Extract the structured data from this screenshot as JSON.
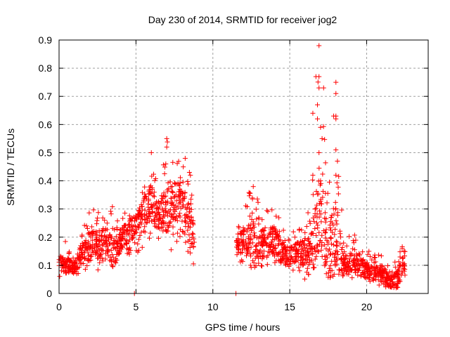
{
  "chart_data": {
    "type": "scatter",
    "title": "Day 230 of 2014, SRMTID for receiver jog2",
    "xlabel": "GPS time / hours",
    "ylabel": "SRMTID / TECUs",
    "xlim": [
      0,
      24
    ],
    "ylim": [
      0,
      0.9
    ],
    "xticks": [
      0,
      5,
      10,
      15,
      20
    ],
    "xtick_labels": [
      "0",
      "5",
      "10",
      "15",
      "20"
    ],
    "yticks": [
      0,
      0.1,
      0.2,
      0.3,
      0.4,
      0.5,
      0.6,
      0.7,
      0.8,
      0.9
    ],
    "ytick_labels": [
      "0",
      "0.1",
      "0.2",
      "0.3",
      "0.4",
      "0.5",
      "0.6",
      "0.7",
      "0.8",
      "0.9"
    ],
    "grid": true,
    "legend": "none",
    "marker": "plus",
    "color": "#ff0000",
    "series": [
      {
        "name": "SRMTID",
        "envelope_description": "Dense point cloud; sampled trend values per time bin (hour, typical value, min, max)",
        "trend": [
          [
            0.0,
            0.11,
            0.05,
            0.16
          ],
          [
            0.5,
            0.1,
            0.06,
            0.19
          ],
          [
            1.0,
            0.09,
            0.05,
            0.14
          ],
          [
            1.5,
            0.15,
            0.08,
            0.24
          ],
          [
            2.0,
            0.17,
            0.06,
            0.3
          ],
          [
            2.5,
            0.17,
            0.08,
            0.31
          ],
          [
            3.0,
            0.2,
            0.1,
            0.28
          ],
          [
            3.5,
            0.14,
            0.09,
            0.33
          ],
          [
            4.0,
            0.19,
            0.12,
            0.3
          ],
          [
            4.5,
            0.22,
            0.13,
            0.3
          ],
          [
            5.0,
            0.24,
            0.14,
            0.31
          ],
          [
            5.5,
            0.3,
            0.14,
            0.37
          ],
          [
            6.0,
            0.32,
            0.2,
            0.5
          ],
          [
            6.5,
            0.28,
            0.18,
            0.4
          ],
          [
            7.0,
            0.3,
            0.14,
            0.55
          ],
          [
            7.5,
            0.33,
            0.15,
            0.46
          ],
          [
            8.0,
            0.32,
            0.19,
            0.48
          ],
          [
            8.5,
            0.24,
            0.12,
            0.45
          ],
          [
            8.8,
            0.19,
            0.1,
            0.25
          ],
          [
            11.5,
            0.18,
            0.12,
            0.25
          ],
          [
            12.0,
            0.18,
            0.09,
            0.29
          ],
          [
            12.5,
            0.2,
            0.08,
            0.4
          ],
          [
            13.0,
            0.17,
            0.1,
            0.32
          ],
          [
            13.5,
            0.18,
            0.09,
            0.33
          ],
          [
            14.0,
            0.19,
            0.1,
            0.31
          ],
          [
            14.5,
            0.14,
            0.06,
            0.25
          ],
          [
            15.0,
            0.13,
            0.07,
            0.21
          ],
          [
            15.5,
            0.15,
            0.08,
            0.24
          ],
          [
            16.0,
            0.14,
            0.03,
            0.26
          ],
          [
            16.5,
            0.15,
            0.09,
            0.42
          ],
          [
            16.9,
            0.3,
            0.1,
            0.88
          ],
          [
            17.5,
            0.14,
            0.03,
            0.4
          ],
          [
            18.0,
            0.2,
            0.08,
            0.76
          ],
          [
            18.5,
            0.1,
            0.05,
            0.21
          ],
          [
            19.0,
            0.11,
            0.05,
            0.2
          ],
          [
            19.5,
            0.1,
            0.05,
            0.23
          ],
          [
            20.0,
            0.08,
            0.04,
            0.16
          ],
          [
            20.5,
            0.07,
            0.03,
            0.14
          ],
          [
            21.0,
            0.07,
            0.02,
            0.15
          ],
          [
            21.5,
            0.04,
            0.02,
            0.1
          ],
          [
            22.0,
            0.05,
            0.02,
            0.16
          ],
          [
            22.5,
            0.12,
            0.06,
            0.21
          ]
        ],
        "notable_points": [
          [
            16.9,
            0.88
          ],
          [
            16.7,
            0.77
          ],
          [
            16.9,
            0.77
          ],
          [
            16.9,
            0.73
          ],
          [
            17.2,
            0.73
          ],
          [
            18.0,
            0.75
          ],
          [
            18.0,
            0.71
          ],
          [
            16.8,
            0.67
          ],
          [
            16.5,
            0.64
          ],
          [
            16.8,
            0.62
          ],
          [
            18.0,
            0.63
          ],
          [
            18.0,
            0.62
          ],
          [
            17.0,
            0.59
          ],
          [
            17.1,
            0.55
          ],
          [
            16.9,
            0.5
          ],
          [
            18.0,
            0.51
          ],
          [
            18.1,
            0.47
          ],
          [
            16.5,
            0.42
          ],
          [
            17.0,
            0.4
          ],
          [
            18.0,
            0.42
          ],
          [
            7.0,
            0.55
          ],
          [
            7.0,
            0.52
          ],
          [
            6.0,
            0.5
          ],
          [
            8.2,
            0.48
          ],
          [
            4.9,
            0.0
          ],
          [
            11.5,
            0.0
          ]
        ]
      }
    ]
  }
}
